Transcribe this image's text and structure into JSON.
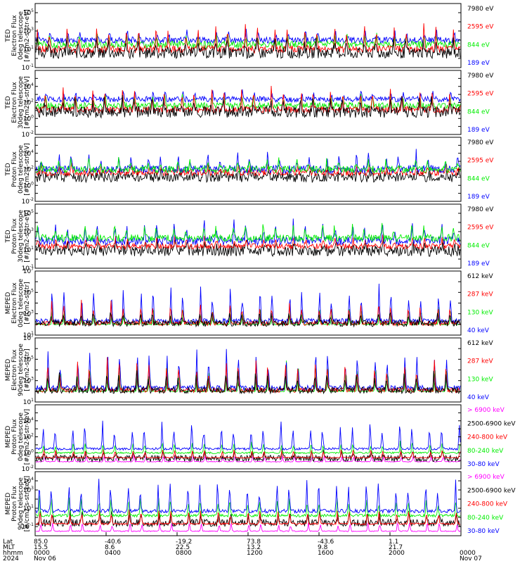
{
  "colors": {
    "black": "#000000",
    "red": "#ff0000",
    "green": "#00ee00",
    "blue": "#0000ff",
    "magenta": "#ff00ff"
  },
  "chart_data": {
    "type": "line",
    "x_axis": {
      "start_hhmm": "0000",
      "end_hhmm": "0000",
      "start_date": "Nov 06",
      "end_date": "Nov 07",
      "year": "2024",
      "row_labels": [
        "Lat",
        "MLT",
        "hhmm",
        "2024"
      ],
      "ticks": [
        {
          "lat": "85.0",
          "mlt": "15.5",
          "hhmm": "0000",
          "date": "Nov 06"
        },
        {
          "lat": "-40.6",
          "mlt": "8.6",
          "hhmm": "0400",
          "date": ""
        },
        {
          "lat": "-19.2",
          "mlt": "22.5",
          "hhmm": "0800",
          "date": ""
        },
        {
          "lat": "73.8",
          "mlt": "13.2",
          "hhmm": "1200",
          "date": ""
        },
        {
          "lat": "-43.6",
          "mlt": "9.8",
          "hhmm": "1600",
          "date": ""
        },
        {
          "lat": "1.1",
          "mlt": "21.7",
          "hhmm": "2000",
          "date": ""
        },
        {
          "lat": "",
          "mlt": "",
          "hhmm": "0000",
          "date": "Nov 07"
        }
      ]
    },
    "panels": [
      {
        "ylabel": [
          "TED",
          "Electron Flux",
          "0deg telescope",
          "[#/cm2-s-str-eV]"
        ],
        "y_log_range": [
          -1,
          6
        ],
        "ticks": [
          {
            "e": -1,
            "label": "10-1"
          },
          {
            "e": 1,
            "label": "101"
          },
          {
            "e": 3,
            "label": "103"
          },
          {
            "e": 5,
            "label": "105"
          }
        ],
        "legend": [
          {
            "label": "7980 eV",
            "color": "#000000"
          },
          {
            "label": "2595 eV",
            "color": "#ff0000"
          },
          {
            "label": "844 eV",
            "color": "#00ee00"
          },
          {
            "label": "189 eV",
            "color": "#0000ff"
          }
        ],
        "series": [
          {
            "name": "189 eV",
            "color": "#0000ff",
            "base": 2.0,
            "noise": 0.35,
            "peak": 1.0,
            "seed": 11
          },
          {
            "name": "844 eV",
            "color": "#00ee00",
            "base": 1.5,
            "noise": 0.4,
            "peak": 1.2,
            "seed": 12
          },
          {
            "name": "2595 eV",
            "color": "#ff0000",
            "base": 1.0,
            "noise": 0.4,
            "peak": 2.6,
            "seed": 13
          },
          {
            "name": "7980 eV",
            "color": "#000000",
            "base": 0.6,
            "noise": 0.6,
            "peak": 1.6,
            "seed": 14
          }
        ]
      },
      {
        "ylabel": [
          "TED",
          "Electron Flux",
          "30deg telescope",
          "[#/cm2-s-str-eV]"
        ],
        "y_log_range": [
          -2,
          6
        ],
        "ticks": [
          {
            "e": -2,
            "label": "10-2"
          },
          {
            "e": 0,
            "label": "100"
          },
          {
            "e": 2,
            "label": "102"
          },
          {
            "e": 4,
            "label": "104"
          }
        ],
        "legend": [
          {
            "label": "7980 eV",
            "color": "#000000"
          },
          {
            "label": "2595 eV",
            "color": "#ff0000"
          },
          {
            "label": "844 eV",
            "color": "#00ee00"
          },
          {
            "label": "189 eV",
            "color": "#0000ff"
          }
        ],
        "series": [
          {
            "name": "189 eV",
            "color": "#0000ff",
            "base": 2.4,
            "noise": 0.35,
            "peak": 1.0,
            "seed": 21
          },
          {
            "name": "844 eV",
            "color": "#00ee00",
            "base": 1.6,
            "noise": 0.4,
            "peak": 1.4,
            "seed": 22
          },
          {
            "name": "2595 eV",
            "color": "#ff0000",
            "base": 1.1,
            "noise": 0.4,
            "peak": 2.6,
            "seed": 23
          },
          {
            "name": "7980 eV",
            "color": "#000000",
            "base": 0.8,
            "noise": 0.7,
            "peak": 1.6,
            "seed": 24
          }
        ]
      },
      {
        "ylabel": [
          "TED",
          "Proton Flux",
          "0deg telescope",
          "[#/cm2-s-str-eV]"
        ],
        "y_log_range": [
          -2,
          6
        ],
        "ticks": [
          {
            "e": -2,
            "label": "10-2"
          },
          {
            "e": 0,
            "label": "100"
          },
          {
            "e": 2,
            "label": "102"
          },
          {
            "e": 4,
            "label": "104"
          }
        ],
        "legend": [
          {
            "label": "7980 eV",
            "color": "#000000"
          },
          {
            "label": "2595 eV",
            "color": "#ff0000"
          },
          {
            "label": "844 eV",
            "color": "#00ee00"
          },
          {
            "label": "189 eV",
            "color": "#0000ff"
          }
        ],
        "series": [
          {
            "name": "7980 eV",
            "color": "#000000",
            "base": 1.0,
            "noise": 0.6,
            "peak": 1.0,
            "seed": 31
          },
          {
            "name": "2595 eV",
            "color": "#ff0000",
            "base": 1.6,
            "noise": 0.4,
            "peak": 1.0,
            "seed": 32
          },
          {
            "name": "189 eV",
            "color": "#0000ff",
            "base": 2.0,
            "noise": 0.5,
            "peak": 1.9,
            "seed": 33
          },
          {
            "name": "844 eV",
            "color": "#00ee00",
            "base": 2.0,
            "noise": 0.45,
            "peak": 1.3,
            "seed": 34
          }
        ]
      },
      {
        "ylabel": [
          "TED",
          "Proton Flux",
          "30deg telescope",
          "[#/cm2-s-str-eV]"
        ],
        "y_log_range": [
          -1,
          6
        ],
        "ticks": [
          {
            "e": -1,
            "label": "10-1"
          },
          {
            "e": 1,
            "label": "101"
          },
          {
            "e": 3,
            "label": "103"
          },
          {
            "e": 5,
            "label": "105"
          }
        ],
        "legend": [
          {
            "label": "7980 eV",
            "color": "#000000"
          },
          {
            "label": "2595 eV",
            "color": "#ff0000"
          },
          {
            "label": "844 eV",
            "color": "#00ee00"
          },
          {
            "label": "189 eV",
            "color": "#0000ff"
          }
        ],
        "series": [
          {
            "name": "7980 eV",
            "color": "#000000",
            "base": 0.9,
            "noise": 0.6,
            "peak": 1.0,
            "seed": 41
          },
          {
            "name": "2595 eV",
            "color": "#ff0000",
            "base": 1.4,
            "noise": 0.3,
            "peak": 1.0,
            "seed": 42
          },
          {
            "name": "189 eV",
            "color": "#0000ff",
            "base": 2.0,
            "noise": 0.45,
            "peak": 2.0,
            "seed": 43
          },
          {
            "name": "844 eV",
            "color": "#00ee00",
            "base": 2.3,
            "noise": 0.4,
            "peak": 1.4,
            "seed": 44
          }
        ]
      },
      {
        "ylabel": [
          "MEPED",
          "Electron Flux",
          "0deg telescope",
          "[#/cm2-s-str]"
        ],
        "y_log_range": [
          1,
          7
        ],
        "ticks": [
          {
            "e": 1,
            "label": "101"
          },
          {
            "e": 3,
            "label": "103"
          },
          {
            "e": 5,
            "label": "105"
          },
          {
            "e": 7,
            "label": "107"
          }
        ],
        "legend": [
          {
            "label": "612 keV",
            "color": "#000000"
          },
          {
            "label": "287 keV",
            "color": "#ff0000"
          },
          {
            "label": "130 keV",
            "color": "#00ee00"
          },
          {
            "label": "40 keV",
            "color": "#0000ff"
          }
        ],
        "series": [
          {
            "name": "130 keV",
            "color": "#00ee00",
            "base": 2.0,
            "noise": 0.05,
            "peak": 1.6,
            "seed": 51
          },
          {
            "name": "40 keV",
            "color": "#0000ff",
            "base": 2.3,
            "noise": 0.25,
            "peak": 3.2,
            "seed": 52
          },
          {
            "name": "287 keV",
            "color": "#ff0000",
            "base": 2.1,
            "noise": 0.2,
            "peak": 2.0,
            "seed": 53
          },
          {
            "name": "612 keV",
            "color": "#000000",
            "base": 2.1,
            "noise": 0.3,
            "peak": 1.0,
            "seed": 54
          }
        ]
      },
      {
        "ylabel": [
          "MEPED",
          "Electron Flux",
          "90deg telescope",
          "[#/cm2-s-str]"
        ],
        "y_log_range": [
          1,
          7
        ],
        "ticks": [
          {
            "e": 1,
            "label": "101"
          },
          {
            "e": 3,
            "label": "103"
          },
          {
            "e": 5,
            "label": "105"
          },
          {
            "e": 7,
            "label": "107"
          }
        ],
        "legend": [
          {
            "label": "612 keV",
            "color": "#000000"
          },
          {
            "label": "287 keV",
            "color": "#ff0000"
          },
          {
            "label": "130 keV",
            "color": "#00ee00"
          },
          {
            "label": "40 keV",
            "color": "#0000ff"
          }
        ],
        "series": [
          {
            "name": "130 keV",
            "color": "#00ee00",
            "base": 2.0,
            "noise": 0.05,
            "peak": 2.6,
            "seed": 61
          },
          {
            "name": "40 keV",
            "color": "#0000ff",
            "base": 2.3,
            "noise": 0.25,
            "peak": 3.4,
            "seed": 62
          },
          {
            "name": "287 keV",
            "color": "#ff0000",
            "base": 2.1,
            "noise": 0.2,
            "peak": 2.8,
            "seed": 63
          },
          {
            "name": "612 keV",
            "color": "#000000",
            "base": 2.1,
            "noise": 0.3,
            "peak": 1.8,
            "seed": 64
          }
        ]
      },
      {
        "ylabel": [
          "MEPED",
          "Proton Flux",
          "0deg telescope",
          "[#/cm2-s-str-keV]"
        ],
        "y_log_range": [
          -2,
          6
        ],
        "ticks": [
          {
            "e": -2,
            "label": "10-2"
          },
          {
            "e": 0,
            "label": "100"
          },
          {
            "e": 2,
            "label": "102"
          },
          {
            "e": 4,
            "label": "104"
          }
        ],
        "legend": [
          {
            "label": "> 6900 keV",
            "color": "#ff00ff"
          },
          {
            "label": "2500-6900 keV",
            "color": "#000000"
          },
          {
            "label": "240-800 keV",
            "color": "#ff0000"
          },
          {
            "label": "80-240 keV",
            "color": "#00ee00"
          },
          {
            "label": "30-80 keV",
            "color": "#0000ff"
          }
        ],
        "series": [
          {
            "name": "> 6900 keV",
            "color": "#ff00ff",
            "base": -1.1,
            "noise": 0.05,
            "peak": 0.8,
            "seed": 71
          },
          {
            "name": "2500-6900 keV",
            "color": "#000000",
            "base": -0.7,
            "noise": 0.4,
            "peak": 1.0,
            "seed": 72
          },
          {
            "name": "240-800 keV",
            "color": "#ff0000",
            "base": -0.6,
            "noise": 0.05,
            "peak": 1.2,
            "seed": 73
          },
          {
            "name": "80-240 keV",
            "color": "#00ee00",
            "base": 0.0,
            "noise": 0.1,
            "peak": 1.4,
            "seed": 74
          },
          {
            "name": "30-80 keV",
            "color": "#0000ff",
            "base": 0.5,
            "noise": 0.15,
            "peak": 3.2,
            "seed": 75
          }
        ]
      },
      {
        "ylabel": [
          "MEPED",
          "Proton Flux",
          "90deg telescope",
          "[#/cm2-s-str-keV]"
        ],
        "y_log_range": [
          -2,
          5
        ],
        "ticks": [
          {
            "e": -1,
            "label": "10-1"
          },
          {
            "e": 1,
            "label": "101"
          },
          {
            "e": 3,
            "label": "103"
          },
          {
            "e": 4,
            "label": "104"
          }
        ],
        "legend": [
          {
            "label": "> 6900 keV",
            "color": "#ff00ff"
          },
          {
            "label": "2500-6900 keV",
            "color": "#000000"
          },
          {
            "label": "240-800 keV",
            "color": "#ff0000"
          },
          {
            "label": "80-240 keV",
            "color": "#00ee00"
          },
          {
            "label": "30-80 keV",
            "color": "#0000ff"
          }
        ],
        "series": [
          {
            "name": "> 6900 keV",
            "color": "#ff00ff",
            "base": -1.5,
            "noise": 0.05,
            "peak": 1.0,
            "seed": 81
          },
          {
            "name": "2500-6900 keV",
            "color": "#000000",
            "base": -0.6,
            "noise": 0.4,
            "peak": 1.3,
            "seed": 82
          },
          {
            "name": "240-800 keV",
            "color": "#ff0000",
            "base": -0.7,
            "noise": 0.1,
            "peak": 1.6,
            "seed": 83
          },
          {
            "name": "80-240 keV",
            "color": "#00ee00",
            "base": 0.2,
            "noise": 0.15,
            "peak": 2.0,
            "seed": 84
          },
          {
            "name": "30-80 keV",
            "color": "#0000ff",
            "base": 0.7,
            "noise": 0.2,
            "peak": 3.2,
            "seed": 85
          }
        ]
      }
    ]
  }
}
